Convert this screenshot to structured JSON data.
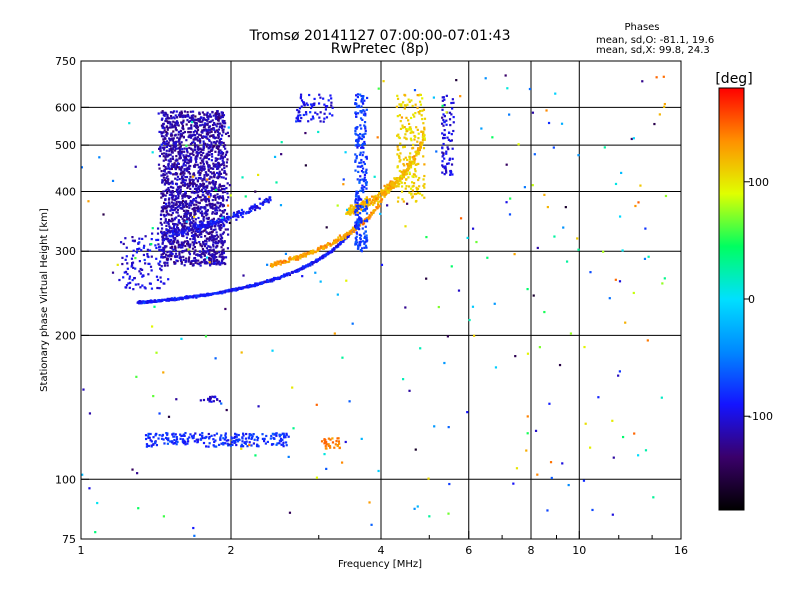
{
  "chart_data": {
    "type": "scatter",
    "title": "Tromsø 20141127 07:00:00-07:01:43",
    "subtitle": "RwPretec (8p)",
    "xlabel": "Frequency [MHz]",
    "ylabel": "Stationary phase Virtual Height [km]",
    "x_scale": "log",
    "y_scale": "log",
    "xlim": [
      1,
      16
    ],
    "ylim": [
      75,
      750
    ],
    "x_ticks": [
      1,
      2,
      4,
      6,
      8,
      10,
      16
    ],
    "x_tick_labels": [
      "1",
      "2",
      "4",
      "6",
      "8",
      "10",
      "16"
    ],
    "x_minor_ticks": [
      3,
      5,
      7,
      9,
      12,
      14
    ],
    "y_ticks": [
      75,
      100,
      200,
      300,
      400,
      500,
      600,
      750
    ],
    "y_tick_labels": [
      "75",
      "100",
      "200",
      "300",
      "400",
      "500",
      "600",
      "750"
    ],
    "grid_x": [
      2,
      4,
      6,
      8,
      10
    ],
    "grid_y": [
      100,
      200,
      300,
      400,
      500,
      600
    ],
    "stats": {
      "heading": "Phases",
      "line_o": "mean, sd,O: -81.1, 19.6",
      "line_x": "mean, sd,X:  99.8, 24.3"
    },
    "colorbar": {
      "unit_label": "[deg]",
      "range": [
        -180,
        180
      ],
      "ticks": [
        100,
        0,
        -100
      ],
      "tick_labels": [
        "100",
        "0",
        "-100"
      ],
      "colormap": [
        "#000000",
        "#3a006a",
        "#1414ff",
        "#0088ff",
        "#00e0ff",
        "#00ff60",
        "#e0ff00",
        "#ff9000",
        "#ff0000"
      ]
    },
    "point_groups": [
      {
        "kind": "traces",
        "phase": -115,
        "count": 1900,
        "f": [
          1.45,
          1.95
        ],
        "h": [
          280,
          590
        ],
        "jitter": 0.02
      },
      {
        "kind": "traces",
        "phase": -100,
        "count": 120,
        "f": [
          1.2,
          1.5
        ],
        "h": [
          250,
          330
        ],
        "jitter": 0.02
      },
      {
        "kind": "curve",
        "phase": -90,
        "count": 700,
        "f": [
          1.3,
          3.65
        ],
        "h0": 225,
        "fc": 3.9,
        "hstep": 0.005
      },
      {
        "kind": "curve",
        "phase": -95,
        "count": 180,
        "f": [
          1.5,
          2.4
        ],
        "h0": 300,
        "fc": 3.1,
        "hstep": 0.02
      },
      {
        "kind": "curve",
        "phase": 130,
        "count": 260,
        "f": [
          2.4,
          4.2
        ],
        "h0": 250,
        "fc": 4.35,
        "hstep": 0.01
      },
      {
        "kind": "curve",
        "phase": 120,
        "count": 320,
        "f": [
          3.4,
          4.9
        ],
        "h0": 300,
        "fc": 5.0,
        "hstep": 0.02
      },
      {
        "kind": "column",
        "phase": -75,
        "count": 260,
        "f": [
          3.55,
          3.75
        ],
        "h": [
          300,
          640
        ]
      },
      {
        "kind": "column",
        "phase": 110,
        "count": 200,
        "f": [
          4.3,
          4.9
        ],
        "h": [
          380,
          640
        ]
      },
      {
        "kind": "column",
        "phase": -100,
        "count": 80,
        "f": [
          5.3,
          5.6
        ],
        "h": [
          430,
          640
        ]
      },
      {
        "kind": "column",
        "phase": -95,
        "count": 70,
        "f": [
          2.7,
          3.2
        ],
        "h": [
          560,
          640
        ]
      },
      {
        "kind": "trace",
        "phase": -80,
        "count": 240,
        "f": [
          1.35,
          2.6
        ],
        "h": [
          117,
          125
        ],
        "jitter": 0.01
      },
      {
        "kind": "trace",
        "phase": 140,
        "count": 30,
        "f": [
          3.05,
          3.3
        ],
        "h": [
          116,
          122
        ],
        "jitter": 0.01
      },
      {
        "kind": "trace",
        "phase": -110,
        "count": 20,
        "f": [
          1.75,
          1.9
        ],
        "h": [
          145,
          149
        ],
        "jitter": 0.01
      },
      {
        "kind": "scatter",
        "phase": 0,
        "count": 260,
        "f": [
          1.0,
          15.0
        ],
        "h": [
          76,
          700
        ]
      }
    ]
  }
}
